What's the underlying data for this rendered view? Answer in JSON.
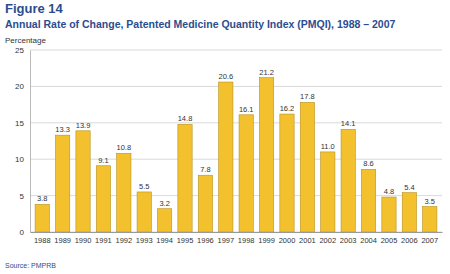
{
  "chart_data": {
    "type": "bar",
    "title": "Figure 14",
    "subtitle": "Annual Rate of Change, Patented Medicine Quantity Index (PMQI), 1988 – 2007",
    "y_label": "Percentage",
    "source": "Source: PMPRB",
    "categories": [
      "1988",
      "1989",
      "1990",
      "1991",
      "1992",
      "1993",
      "1994",
      "1995",
      "1996",
      "1997",
      "1998",
      "1999",
      "2000",
      "2001",
      "2002",
      "2003",
      "2004",
      "2005",
      "2006",
      "2007"
    ],
    "values": [
      3.8,
      13.3,
      13.9,
      9.1,
      10.8,
      5.5,
      3.2,
      14.8,
      7.8,
      20.6,
      16.1,
      21.2,
      16.2,
      17.8,
      11.0,
      14.1,
      8.6,
      4.8,
      5.4,
      3.5
    ],
    "value_labels": [
      "3.8",
      "13.3",
      "13.9",
      "9.1",
      "10.8",
      "5.5",
      "3.2",
      "14.8",
      "7.8",
      "20.6",
      "16.1",
      "21.2",
      "16.2",
      "17.8",
      "11.0",
      "14.1",
      "8.6",
      "4.8",
      "5.4",
      "3.5"
    ],
    "color": "#f3c12e",
    "ylim": [
      0,
      25
    ],
    "yticks": [
      0,
      5,
      10,
      15,
      20,
      25
    ],
    "grid": true,
    "data_labels": true
  }
}
